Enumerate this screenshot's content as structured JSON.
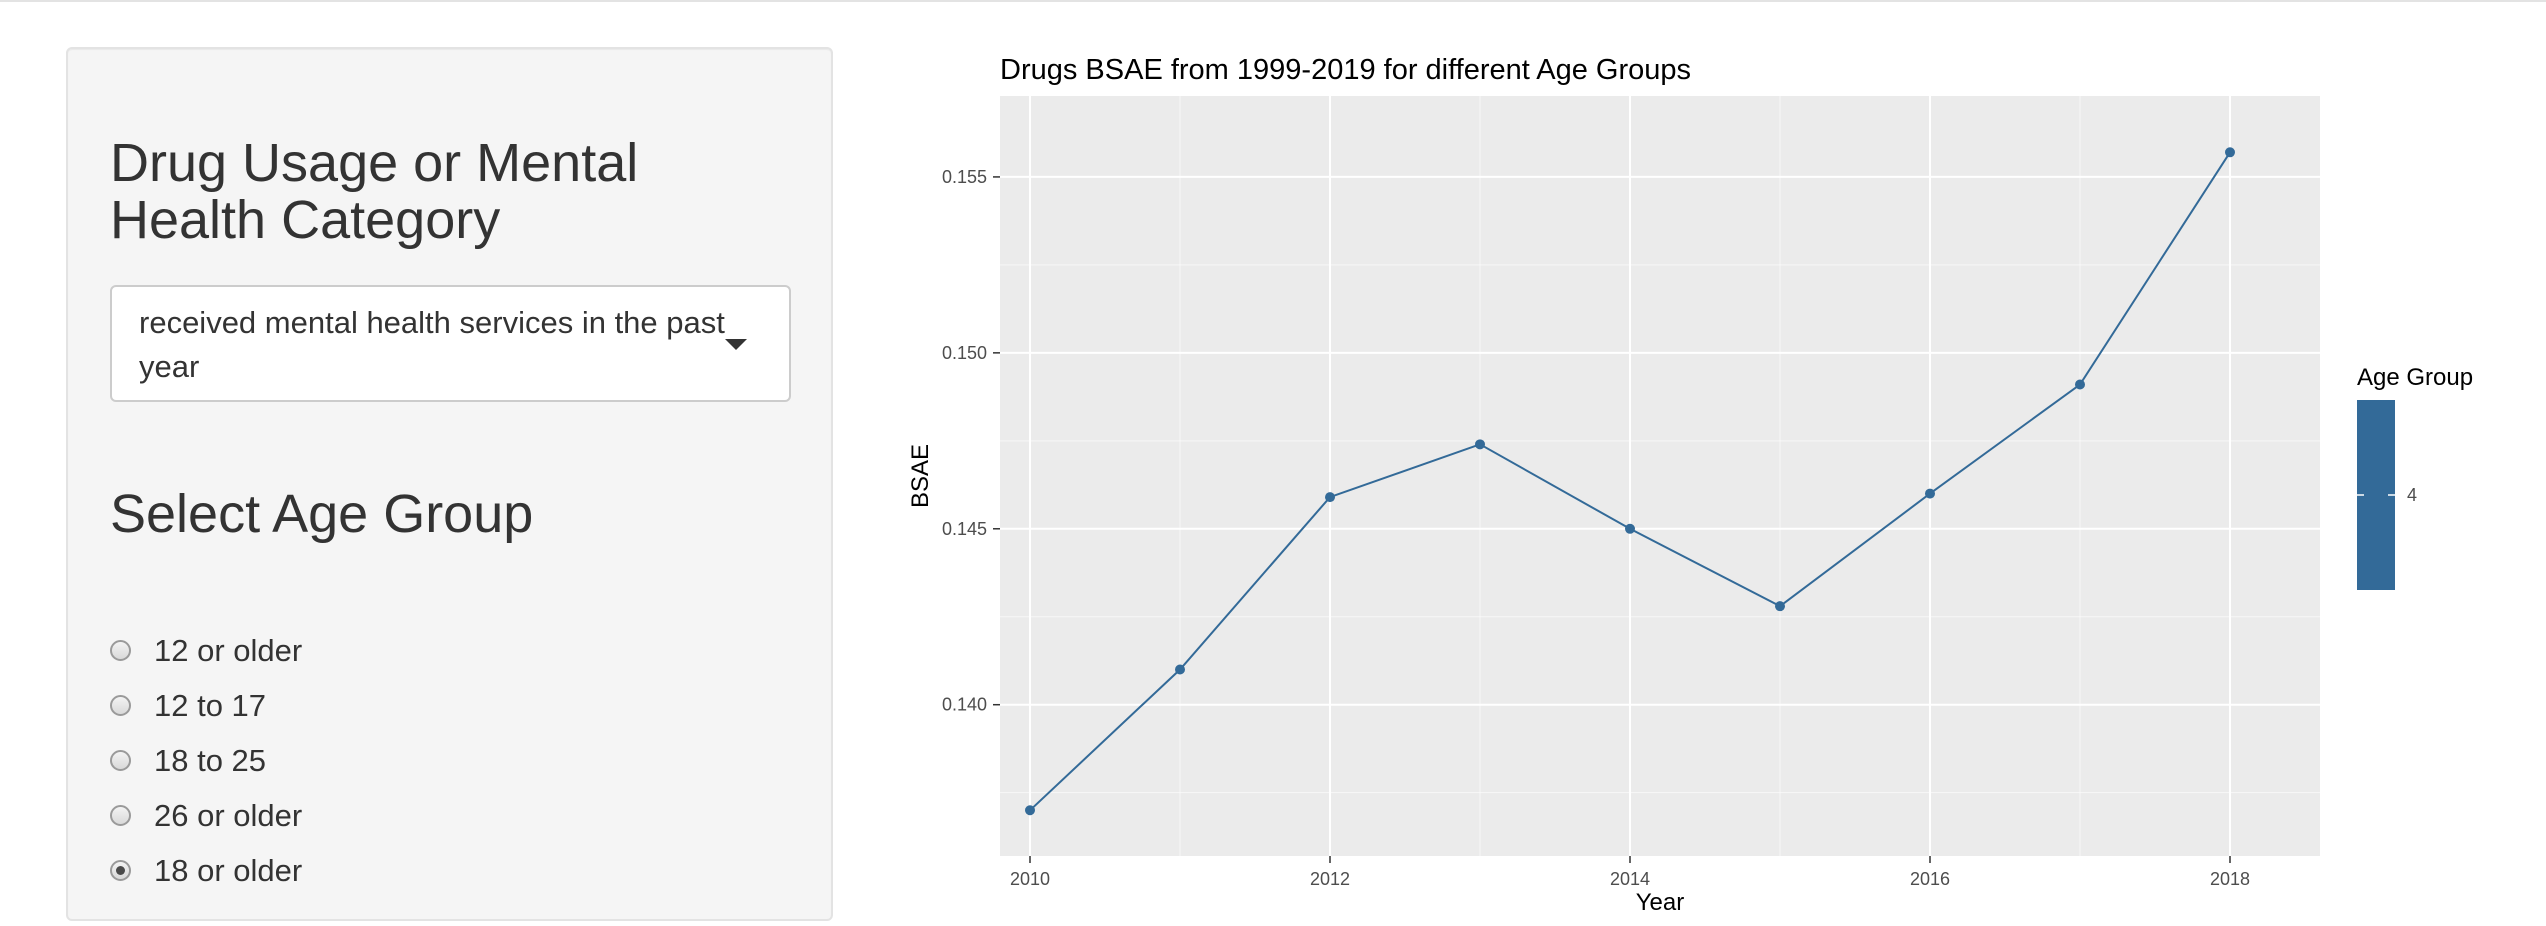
{
  "sidebar": {
    "category_title": "Drug Usage or Mental Health Category",
    "category_select": {
      "selected": "received mental health services in the past year"
    },
    "age_title": "Select Age Group",
    "age_options": [
      {
        "label": "12 or older",
        "checked": false
      },
      {
        "label": "12 to 17",
        "checked": false
      },
      {
        "label": "18 to 25",
        "checked": false
      },
      {
        "label": "26 or older",
        "checked": false
      },
      {
        "label": "18 or older",
        "checked": true
      }
    ]
  },
  "colors": {
    "panel_bg": "#f5f5f5",
    "plot_bg": "#ebebeb",
    "grid": "#ffffff",
    "series": "#336a98"
  },
  "chart_data": {
    "type": "line",
    "title": "Drugs BSAE from 1999-2019 for different Age Groups",
    "xlabel": "Year",
    "ylabel": "BSAE",
    "x": [
      2010,
      2011,
      2012,
      2013,
      2014,
      2015,
      2016,
      2017,
      2018
    ],
    "series": [
      {
        "values": [
          0.137,
          0.141,
          0.1459,
          0.1474,
          0.145,
          0.1428,
          0.146,
          0.1491,
          0.1557
        ]
      }
    ],
    "x_ticks": [
      2010,
      2012,
      2014,
      2016,
      2018
    ],
    "y_ticks": [
      "0.140",
      "0.145",
      "0.150",
      "0.155"
    ],
    "y_tick_values": [
      0.14,
      0.145,
      0.15,
      0.155
    ],
    "xlim": [
      2009.8,
      2018.6
    ],
    "ylim": [
      0.1357,
      0.1573
    ],
    "grid": true,
    "markers": true,
    "legend": {
      "title": "Age Group",
      "label": "4",
      "placement": "right"
    }
  }
}
